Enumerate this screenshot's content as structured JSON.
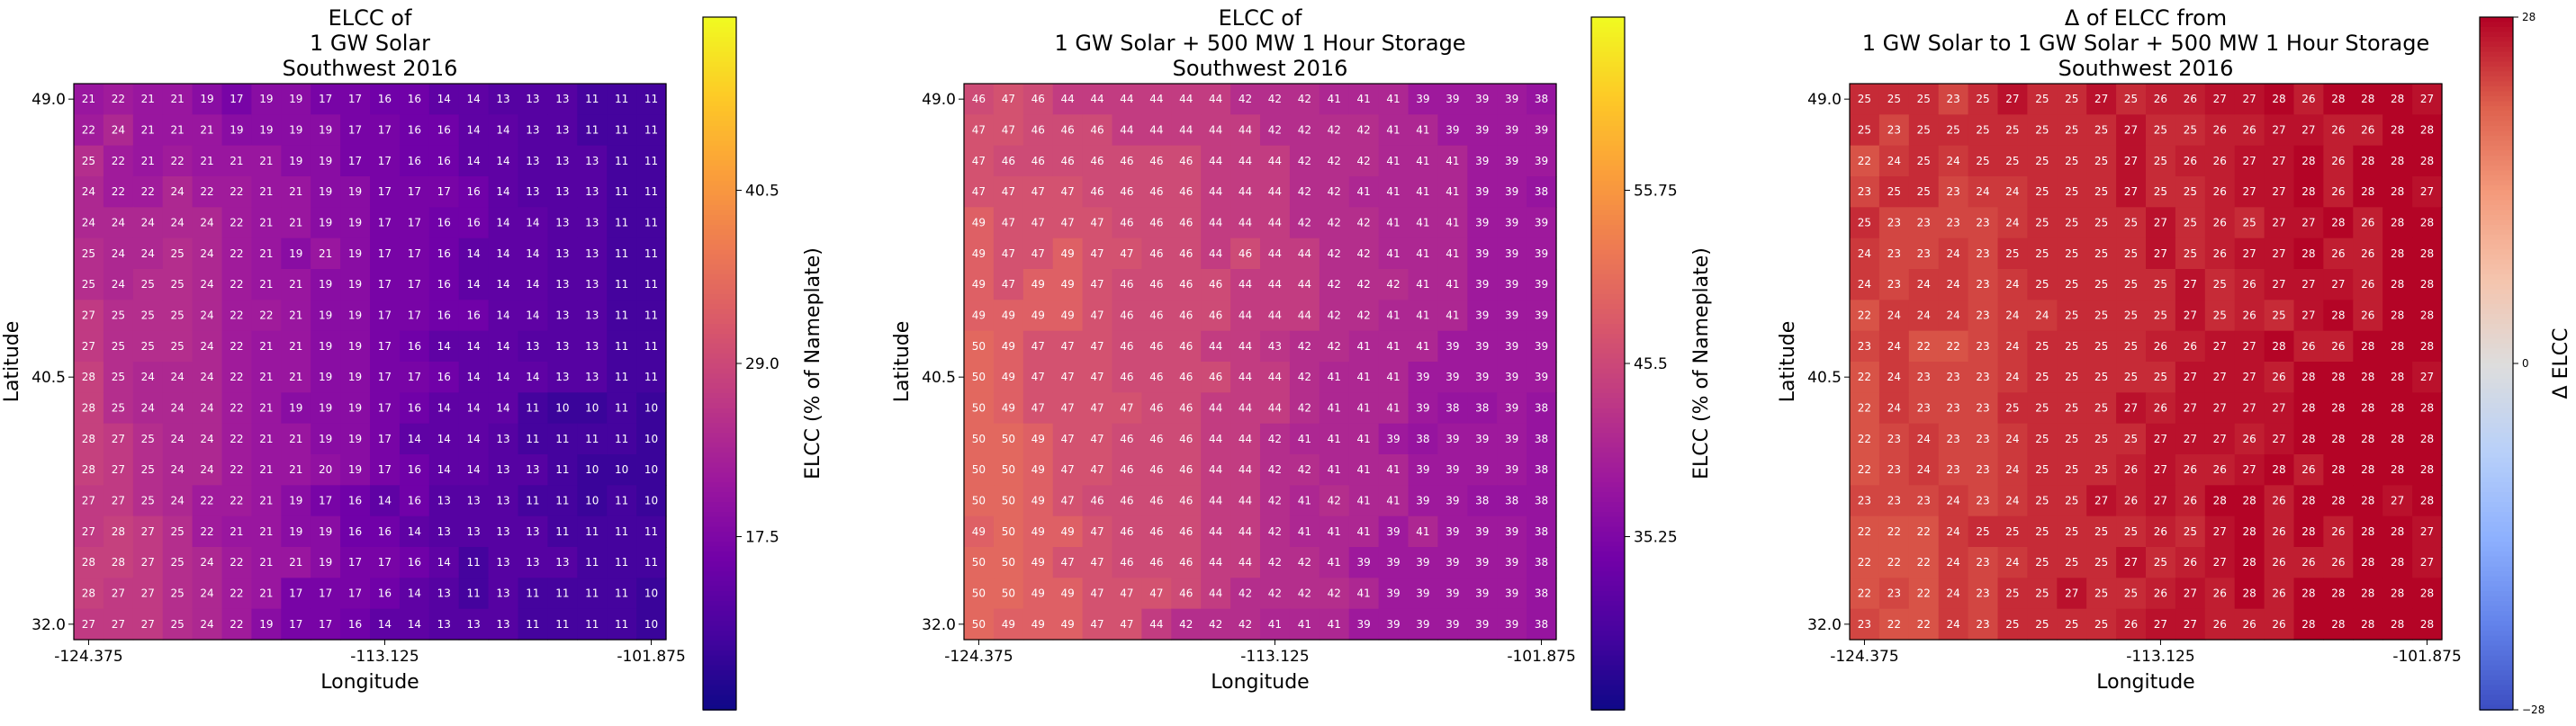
{
  "figure": {
    "background": "#ffffff"
  },
  "chart_data": [
    {
      "type": "heatmap",
      "title": "ELCC of\n1 GW Solar\nSouthwest 2016",
      "xlabel": "Longitude",
      "ylabel": "Latitude",
      "xtick_labels": [
        "-124.375",
        "-113.125",
        "-101.875"
      ],
      "ytick_labels": [
        "49.0",
        "40.5",
        "32.0"
      ],
      "colormap": "plasma",
      "colorbar": {
        "label": "ELCC (% of Nameplate)",
        "range": [
          6.0,
          52.0
        ],
        "ticks": [
          "17.5",
          "29.0",
          "40.5"
        ]
      },
      "value_text_color": "#ffffff",
      "rows": [
        [
          21,
          22,
          21,
          21,
          19,
          17,
          19,
          19,
          17,
          17,
          16,
          16,
          14,
          14,
          13,
          13,
          13,
          11,
          11,
          11
        ],
        [
          22,
          24,
          21,
          21,
          21,
          19,
          19,
          19,
          19,
          17,
          17,
          16,
          16,
          14,
          14,
          13,
          13,
          11,
          11,
          11
        ],
        [
          25,
          22,
          21,
          22,
          21,
          21,
          21,
          19,
          19,
          17,
          17,
          16,
          16,
          14,
          14,
          13,
          13,
          13,
          11,
          11
        ],
        [
          24,
          22,
          22,
          24,
          22,
          22,
          21,
          21,
          19,
          19,
          17,
          17,
          17,
          16,
          14,
          13,
          13,
          13,
          11,
          11
        ],
        [
          24,
          24,
          24,
          24,
          24,
          22,
          21,
          21,
          19,
          19,
          17,
          17,
          16,
          16,
          14,
          14,
          13,
          13,
          11,
          11
        ],
        [
          25,
          24,
          24,
          25,
          24,
          22,
          21,
          19,
          21,
          19,
          17,
          17,
          16,
          14,
          14,
          14,
          13,
          13,
          11,
          11
        ],
        [
          25,
          24,
          25,
          25,
          24,
          22,
          21,
          21,
          19,
          19,
          17,
          17,
          16,
          14,
          14,
          14,
          13,
          13,
          11,
          11
        ],
        [
          27,
          25,
          25,
          25,
          24,
          22,
          22,
          21,
          19,
          19,
          17,
          17,
          16,
          16,
          14,
          14,
          13,
          13,
          11,
          11
        ],
        [
          27,
          25,
          25,
          25,
          24,
          22,
          21,
          21,
          19,
          19,
          17,
          16,
          14,
          14,
          14,
          13,
          13,
          13,
          11,
          11
        ],
        [
          28,
          25,
          24,
          24,
          24,
          22,
          21,
          21,
          19,
          19,
          17,
          17,
          16,
          14,
          14,
          14,
          13,
          13,
          11,
          11
        ],
        [
          28,
          25,
          24,
          24,
          24,
          22,
          21,
          19,
          19,
          19,
          17,
          16,
          14,
          14,
          14,
          11,
          10,
          10,
          11,
          10
        ],
        [
          28,
          27,
          25,
          24,
          24,
          22,
          21,
          21,
          19,
          19,
          17,
          14,
          14,
          14,
          13,
          11,
          11,
          11,
          11,
          10
        ],
        [
          28,
          27,
          25,
          24,
          24,
          22,
          21,
          21,
          20,
          19,
          17,
          16,
          14,
          14,
          13,
          13,
          11,
          10,
          10,
          10
        ],
        [
          27,
          27,
          25,
          24,
          22,
          22,
          21,
          19,
          17,
          16,
          14,
          16,
          13,
          13,
          13,
          11,
          11,
          10,
          11,
          10
        ],
        [
          27,
          28,
          27,
          25,
          22,
          21,
          21,
          19,
          19,
          16,
          16,
          14,
          13,
          13,
          13,
          13,
          11,
          11,
          11,
          11
        ],
        [
          28,
          28,
          27,
          25,
          24,
          22,
          21,
          21,
          19,
          17,
          17,
          16,
          14,
          11,
          13,
          13,
          13,
          11,
          11,
          11
        ],
        [
          28,
          27,
          27,
          25,
          24,
          22,
          21,
          17,
          17,
          17,
          16,
          14,
          13,
          11,
          13,
          11,
          11,
          11,
          11,
          10
        ],
        [
          27,
          27,
          27,
          25,
          24,
          22,
          19,
          17,
          17,
          16,
          14,
          14,
          13,
          13,
          13,
          11,
          11,
          11,
          11,
          10
        ]
      ]
    },
    {
      "type": "heatmap",
      "title": "ELCC of\n1 GW Solar + 500 MW 1 Hour Storage\nSouthwest 2016",
      "xlabel": "Longitude",
      "ylabel": "Latitude",
      "xtick_labels": [
        "-124.375",
        "-113.125",
        "-101.875"
      ],
      "ytick_labels": [
        "49.0",
        "40.5",
        "32.0"
      ],
      "colormap": "plasma",
      "colorbar": {
        "label": "ELCC (% of Nameplate)",
        "range": [
          25.0,
          66.0
        ],
        "ticks": [
          "35.25",
          "45.5",
          "55.75"
        ]
      },
      "value_text_color": "#ffffff",
      "rows": [
        [
          46,
          47,
          46,
          44,
          44,
          44,
          44,
          44,
          44,
          42,
          42,
          42,
          41,
          41,
          41,
          39,
          39,
          39,
          39,
          38
        ],
        [
          47,
          47,
          46,
          46,
          46,
          44,
          44,
          44,
          44,
          44,
          42,
          42,
          42,
          42,
          41,
          41,
          39,
          39,
          39,
          39
        ],
        [
          47,
          46,
          46,
          46,
          46,
          46,
          46,
          46,
          44,
          44,
          44,
          42,
          42,
          42,
          41,
          41,
          41,
          39,
          39,
          39
        ],
        [
          47,
          47,
          47,
          47,
          46,
          46,
          46,
          46,
          44,
          44,
          44,
          42,
          42,
          41,
          41,
          41,
          41,
          39,
          39,
          38
        ],
        [
          49,
          47,
          47,
          47,
          47,
          46,
          46,
          46,
          44,
          44,
          44,
          42,
          42,
          42,
          41,
          41,
          41,
          39,
          39,
          39
        ],
        [
          49,
          47,
          47,
          49,
          47,
          47,
          46,
          46,
          44,
          46,
          44,
          44,
          42,
          42,
          41,
          41,
          41,
          39,
          39,
          39
        ],
        [
          49,
          47,
          49,
          49,
          47,
          46,
          46,
          46,
          46,
          44,
          44,
          44,
          42,
          42,
          42,
          41,
          41,
          39,
          39,
          39
        ],
        [
          49,
          49,
          49,
          49,
          47,
          46,
          46,
          46,
          46,
          44,
          44,
          44,
          42,
          42,
          41,
          41,
          41,
          39,
          39,
          39
        ],
        [
          50,
          49,
          47,
          47,
          47,
          46,
          46,
          46,
          44,
          44,
          43,
          42,
          42,
          41,
          41,
          41,
          39,
          39,
          39,
          39
        ],
        [
          50,
          49,
          47,
          47,
          47,
          46,
          46,
          46,
          46,
          44,
          44,
          42,
          41,
          41,
          41,
          39,
          39,
          39,
          39,
          39
        ],
        [
          50,
          49,
          47,
          47,
          47,
          47,
          46,
          46,
          44,
          44,
          44,
          42,
          41,
          41,
          41,
          39,
          38,
          38,
          39,
          38
        ],
        [
          50,
          50,
          49,
          47,
          47,
          46,
          46,
          46,
          44,
          44,
          42,
          41,
          41,
          41,
          39,
          38,
          39,
          39,
          39,
          38
        ],
        [
          50,
          50,
          49,
          47,
          47,
          46,
          46,
          46,
          44,
          44,
          42,
          42,
          41,
          41,
          41,
          39,
          39,
          39,
          39,
          38
        ],
        [
          50,
          50,
          49,
          47,
          46,
          46,
          46,
          46,
          44,
          44,
          42,
          41,
          42,
          41,
          41,
          39,
          39,
          38,
          38,
          38
        ],
        [
          49,
          50,
          49,
          49,
          47,
          46,
          46,
          46,
          44,
          44,
          42,
          41,
          41,
          41,
          39,
          41,
          39,
          39,
          39,
          38
        ],
        [
          50,
          50,
          49,
          47,
          47,
          46,
          46,
          46,
          44,
          44,
          42,
          42,
          41,
          39,
          39,
          39,
          39,
          39,
          39,
          38
        ],
        [
          50,
          50,
          49,
          49,
          47,
          47,
          47,
          46,
          44,
          42,
          42,
          42,
          42,
          41,
          39,
          39,
          39,
          39,
          39,
          38
        ],
        [
          50,
          49,
          49,
          49,
          47,
          47,
          44,
          42,
          42,
          42,
          41,
          41,
          41,
          39,
          39,
          39,
          39,
          39,
          39,
          38
        ]
      ]
    },
    {
      "type": "heatmap",
      "title": "Δ of ELCC from\n1 GW Solar to 1 GW Solar + 500 MW 1 Hour Storage\nSouthwest 2016",
      "xlabel": "Longitude",
      "ylabel": "Latitude",
      "xtick_labels": [
        "-124.375",
        "-113.125",
        "-101.875"
      ],
      "ytick_labels": [
        "49.0",
        "40.5",
        "32.0"
      ],
      "colormap": "coolwarm",
      "colorbar": {
        "label": "Δ ELCC",
        "range": [
          -28,
          28
        ],
        "ticks": [
          "28",
          "0",
          "−28"
        ]
      },
      "value_text_color": "#ffffff",
      "rows": [
        [
          25,
          25,
          25,
          23,
          25,
          27,
          25,
          25,
          27,
          25,
          26,
          26,
          27,
          27,
          28,
          26,
          28,
          28,
          28,
          27
        ],
        [
          25,
          23,
          25,
          25,
          25,
          25,
          25,
          25,
          25,
          27,
          25,
          25,
          26,
          26,
          27,
          27,
          26,
          26,
          28,
          28
        ],
        [
          22,
          24,
          25,
          24,
          25,
          25,
          25,
          25,
          25,
          27,
          25,
          26,
          26,
          27,
          27,
          28,
          26,
          28,
          28,
          28
        ],
        [
          23,
          25,
          25,
          23,
          24,
          24,
          25,
          25,
          25,
          27,
          25,
          25,
          26,
          27,
          27,
          28,
          26,
          28,
          28,
          27
        ],
        [
          25,
          23,
          23,
          23,
          23,
          24,
          25,
          25,
          25,
          25,
          27,
          25,
          26,
          25,
          27,
          27,
          28,
          26,
          28,
          28
        ],
        [
          24,
          23,
          23,
          24,
          23,
          25,
          25,
          25,
          25,
          25,
          27,
          25,
          26,
          27,
          27,
          28,
          26,
          26,
          28,
          28
        ],
        [
          24,
          23,
          24,
          24,
          23,
          24,
          25,
          25,
          25,
          25,
          25,
          27,
          25,
          26,
          27,
          27,
          27,
          26,
          28,
          28
        ],
        [
          22,
          24,
          24,
          24,
          23,
          24,
          24,
          25,
          25,
          25,
          25,
          27,
          25,
          26,
          25,
          27,
          28,
          26,
          28,
          28
        ],
        [
          23,
          24,
          22,
          22,
          23,
          24,
          25,
          25,
          25,
          25,
          26,
          26,
          27,
          27,
          28,
          26,
          26,
          28,
          28,
          28
        ],
        [
          22,
          24,
          23,
          23,
          23,
          24,
          25,
          25,
          25,
          25,
          25,
          27,
          27,
          27,
          26,
          28,
          28,
          28,
          28,
          27
        ],
        [
          22,
          24,
          23,
          23,
          23,
          25,
          25,
          25,
          25,
          27,
          26,
          27,
          27,
          27,
          27,
          28,
          28,
          28,
          28,
          28
        ],
        [
          22,
          23,
          24,
          23,
          23,
          24,
          25,
          25,
          25,
          25,
          27,
          27,
          27,
          26,
          27,
          28,
          28,
          28,
          28,
          28
        ],
        [
          22,
          23,
          24,
          23,
          23,
          24,
          25,
          25,
          25,
          26,
          27,
          26,
          26,
          27,
          28,
          26,
          28,
          28,
          28,
          28
        ],
        [
          23,
          23,
          23,
          24,
          23,
          24,
          25,
          25,
          27,
          26,
          27,
          26,
          28,
          28,
          26,
          28,
          28,
          28,
          27,
          28
        ],
        [
          22,
          22,
          22,
          24,
          25,
          25,
          25,
          25,
          25,
          25,
          26,
          25,
          27,
          28,
          26,
          28,
          26,
          28,
          28,
          27
        ],
        [
          22,
          22,
          22,
          24,
          23,
          24,
          25,
          25,
          25,
          27,
          25,
          26,
          27,
          28,
          26,
          26,
          26,
          28,
          28,
          27
        ],
        [
          22,
          23,
          22,
          24,
          23,
          25,
          25,
          27,
          25,
          25,
          26,
          27,
          26,
          28,
          26,
          28,
          28,
          28,
          28,
          28
        ],
        [
          23,
          22,
          22,
          24,
          23,
          25,
          25,
          25,
          25,
          26,
          27,
          27,
          26,
          26,
          26,
          28,
          28,
          28,
          28,
          28
        ]
      ]
    }
  ]
}
